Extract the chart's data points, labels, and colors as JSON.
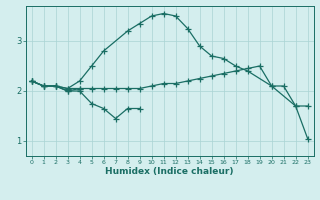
{
  "xlabel": "Humidex (Indice chaleur)",
  "ylabel": "",
  "bg_color": "#d4eeee",
  "line_color": "#1a6e64",
  "grid_color": "#aad4d4",
  "xlim": [
    -0.5,
    23.5
  ],
  "ylim": [
    0.7,
    3.7
  ],
  "x": [
    0,
    1,
    2,
    3,
    4,
    5,
    6,
    7,
    8,
    9,
    10,
    11,
    12,
    13,
    14,
    15,
    16,
    17,
    18,
    19,
    20,
    21,
    22,
    23
  ],
  "line1_x": [
    0,
    1,
    2,
    3,
    4
  ],
  "line1_y": [
    2.2,
    2.1,
    2.1,
    2.0,
    2.05
  ],
  "line2_x": [
    0,
    1,
    2,
    3,
    4,
    5,
    6,
    7,
    8,
    9
  ],
  "line2_y": [
    2.2,
    2.1,
    2.1,
    2.0,
    2.0,
    1.75,
    1.65,
    1.45,
    1.65,
    1.65
  ],
  "line3_x": [
    0,
    1,
    2,
    3,
    4,
    5,
    6,
    7,
    8,
    9,
    10,
    11,
    12,
    13,
    14,
    15,
    16,
    17,
    18,
    19,
    20,
    21,
    22,
    23
  ],
  "line3_y": [
    2.2,
    2.1,
    2.1,
    2.05,
    2.05,
    2.05,
    2.05,
    2.05,
    2.05,
    2.05,
    2.1,
    2.15,
    2.15,
    2.2,
    2.25,
    2.3,
    2.35,
    2.4,
    2.45,
    2.5,
    2.1,
    2.1,
    1.7,
    1.7
  ],
  "line4_x": [
    0,
    1,
    2,
    3,
    4,
    5,
    6,
    8,
    9,
    10,
    11,
    12,
    13,
    14,
    15,
    16,
    17,
    18,
    20,
    22,
    23
  ],
  "line4_y": [
    2.2,
    2.1,
    2.1,
    2.05,
    2.2,
    2.5,
    2.8,
    3.2,
    3.35,
    3.5,
    3.55,
    3.5,
    3.25,
    2.9,
    2.7,
    2.65,
    2.5,
    2.4,
    2.1,
    1.7,
    1.05
  ],
  "xticks": [
    0,
    1,
    2,
    3,
    4,
    5,
    6,
    7,
    8,
    9,
    10,
    11,
    12,
    13,
    14,
    15,
    16,
    17,
    18,
    19,
    20,
    21,
    22,
    23
  ],
  "yticks": [
    1,
    2,
    3
  ]
}
